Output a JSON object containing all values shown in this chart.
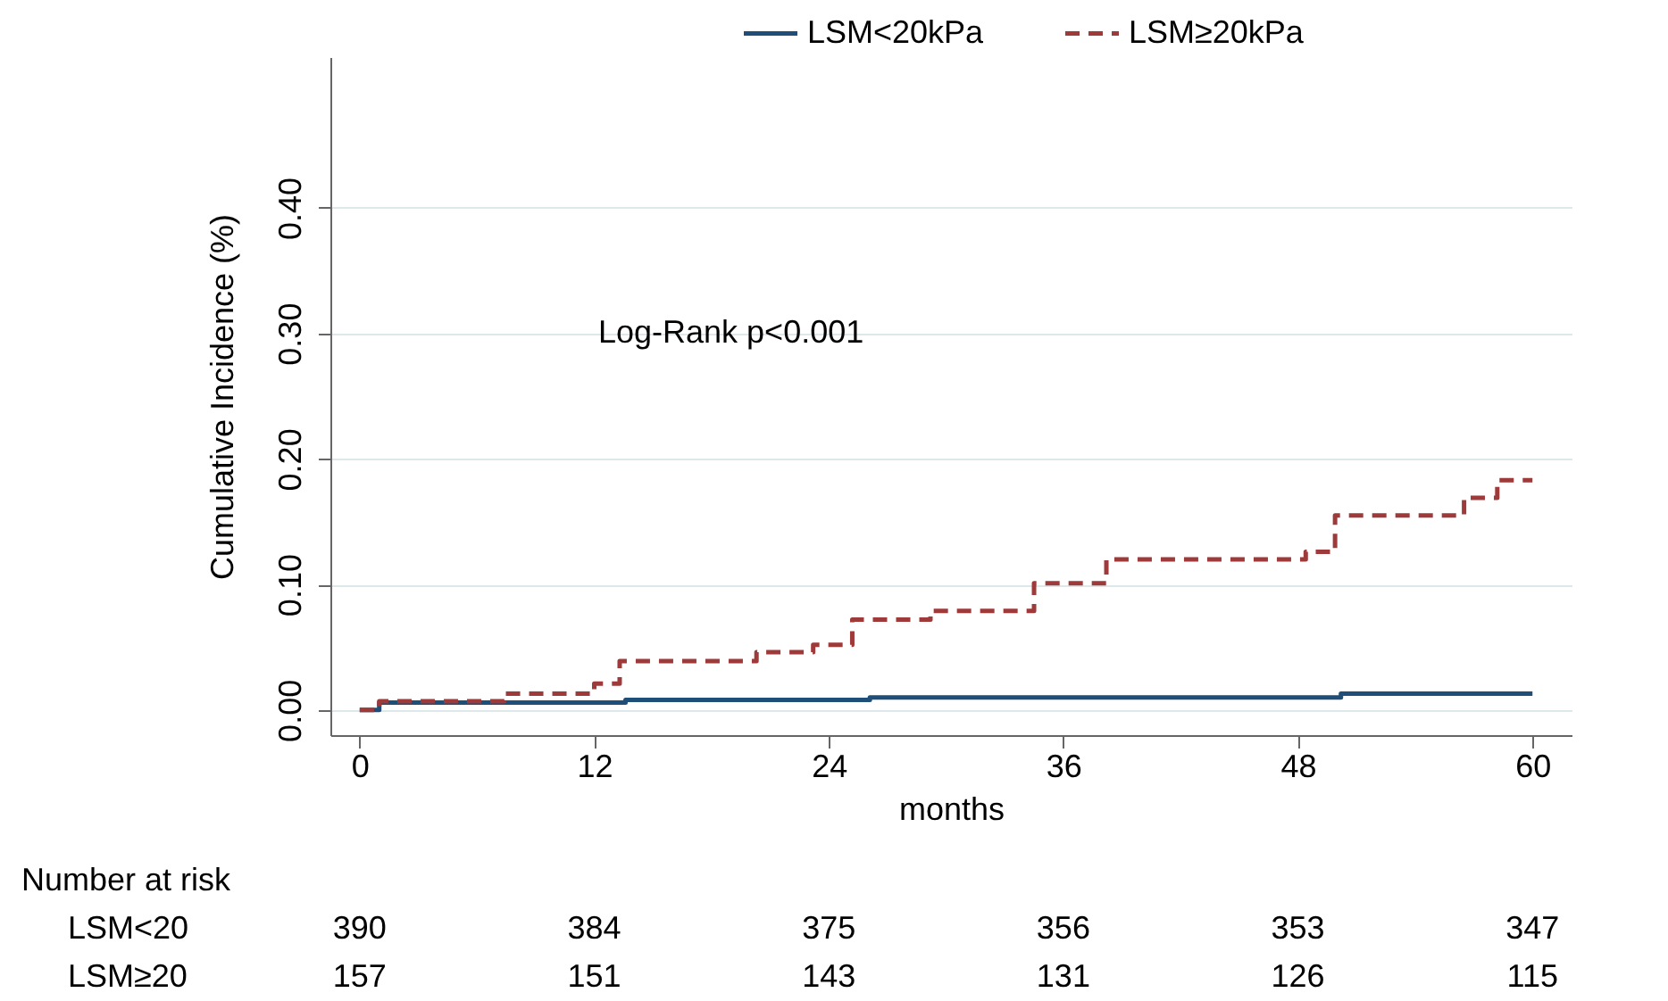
{
  "chart_data": {
    "type": "step",
    "xlabel": "months",
    "ylabel": "Cumulative Incidence (%)",
    "xlim": [
      -1.5,
      62
    ],
    "ylim": [
      -0.02,
      0.52
    ],
    "xticks": [
      0,
      12,
      24,
      36,
      48,
      60
    ],
    "yticks": [
      {
        "value": 0,
        "label": "0.00"
      },
      {
        "value": 0.1,
        "label": "0.10"
      },
      {
        "value": 0.2,
        "label": "0.20"
      },
      {
        "value": 0.3,
        "label": "0.30"
      },
      {
        "value": 0.4,
        "label": "0.40"
      }
    ],
    "grid": "y",
    "legend": "top right",
    "series": [
      {
        "name": "LSM<20kPa",
        "color": "#1f4e79",
        "line_style": "solid",
        "x": [
          0,
          1,
          13.6,
          26.1,
          50.2,
          60
        ],
        "values": [
          0,
          0.006,
          0.008,
          0.01,
          0.013,
          0.013
        ]
      },
      {
        "name": "LSM≥20kPa",
        "color": "#9e3a3a",
        "line_style": "dashed",
        "x": [
          0,
          1,
          7.4,
          12,
          13.3,
          20.3,
          23.2,
          25.2,
          29.2,
          34.5,
          38.2,
          48.4,
          49.9,
          56.5,
          58.2,
          60
        ],
        "values": [
          0,
          0.007,
          0.013,
          0.021,
          0.039,
          0.046,
          0.052,
          0.072,
          0.079,
          0.101,
          0.12,
          0.126,
          0.155,
          0.169,
          0.183,
          0.183
        ]
      }
    ],
    "annotations": [
      "Log-Rank p<0.001",
      "Number at risk",
      "LSM<20",
      "390",
      "384",
      "375",
      "356",
      "353",
      "347",
      "LSM≥20",
      "157",
      "151",
      "143",
      "131",
      "126",
      "115"
    ]
  }
}
